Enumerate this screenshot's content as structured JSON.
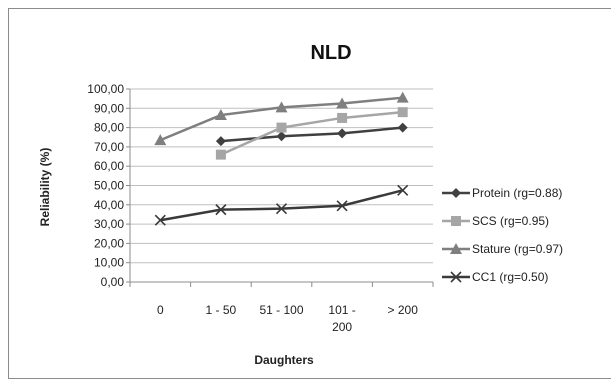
{
  "chart_data": {
    "type": "line",
    "title": "NLD",
    "xlabel": "Daughters",
    "ylabel": "Reliability (%)",
    "categories": [
      "0",
      "1 - 50",
      "51 - 100",
      "101 - 200",
      "> 200"
    ],
    "category_lines": [
      [
        "0"
      ],
      [
        "1 - 50"
      ],
      [
        "51 - 100"
      ],
      [
        "101 -",
        "200"
      ],
      [
        "> 200"
      ]
    ],
    "ylim": [
      0,
      100
    ],
    "ytick_labels": [
      "0,00",
      "10,00",
      "20,00",
      "30,00",
      "40,00",
      "50,00",
      "60,00",
      "70,00",
      "80,00",
      "90,00",
      "100,00"
    ],
    "grid": true,
    "legend_position": "right",
    "series": [
      {
        "name": "Protein (rg=0.88)",
        "values": [
          null,
          73.0,
          75.5,
          77.0,
          80.0
        ],
        "color": "#404040",
        "marker": "diamond"
      },
      {
        "name": "SCS (rg=0.95)",
        "values": [
          null,
          66.0,
          80.0,
          85.0,
          88.0
        ],
        "color": "#a6a6a6",
        "marker": "square"
      },
      {
        "name": "Stature (rg=0.97)",
        "values": [
          73.5,
          86.5,
          90.5,
          92.5,
          95.5
        ],
        "color": "#7f7f7f",
        "marker": "triangle"
      },
      {
        "name": "CC1 (rg=0.50)",
        "values": [
          32.0,
          37.5,
          38.0,
          39.5,
          47.5
        ],
        "color": "#3a3a3a",
        "marker": "x"
      }
    ]
  }
}
